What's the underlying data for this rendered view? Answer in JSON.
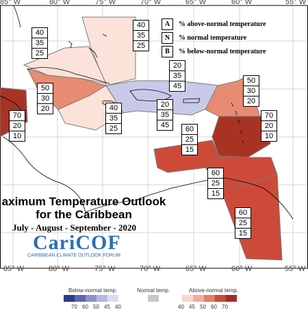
{
  "title_line1": "aximum Temperature Outlook",
  "title_line2": "for the Caribbean",
  "period": "July - August - September - 2020",
  "logo": {
    "name": "CariCOF",
    "subtitle": "CARIBBEAN CLIMATE OUTLOOK FORUM"
  },
  "legend": [
    {
      "key": "A",
      "text": "% above-normal temperature"
    },
    {
      "key": "N",
      "text": "% normal temperature"
    },
    {
      "key": "B",
      "text": "% below-normal temperature"
    }
  ],
  "longitudes": [
    "85° W",
    "80° W",
    "75° W",
    "70° W",
    "65° W",
    "60° W",
    "55° W"
  ],
  "regions": [
    {
      "name": "bahamas-east",
      "above": "40",
      "normal": "35",
      "below": "25",
      "color": "#fbe3da"
    },
    {
      "name": "bahamas-cuba-north",
      "above": "40",
      "normal": "35",
      "below": "25",
      "color": "#fbe3da"
    },
    {
      "name": "hispaniola-puerto-rico",
      "above": "20",
      "normal": "35",
      "below": "45",
      "color": "#c9c9ea"
    },
    {
      "name": "cuba-south",
      "above": "50",
      "normal": "30",
      "below": "20",
      "color": "#e88b73"
    },
    {
      "name": "jamaica-cayman",
      "above": "40",
      "normal": "35",
      "below": "25",
      "color": "#fbe3da"
    },
    {
      "name": "hispaniola-south",
      "above": "20",
      "normal": "35",
      "below": "45",
      "color": "#c9c9ea"
    },
    {
      "name": "leeward-islands-north",
      "above": "50",
      "normal": "30",
      "below": "20",
      "color": "#e88b73"
    },
    {
      "name": "lesser-antilles",
      "above": "70",
      "normal": "20",
      "below": "10",
      "color": "#a93323"
    },
    {
      "name": "belize-yucatan",
      "above": "70",
      "normal": "20",
      "below": "10",
      "color": "#a93323"
    },
    {
      "name": "abc-islands-venezuela",
      "above": "60",
      "normal": "25",
      "below": "15",
      "color": "#cd4a38"
    },
    {
      "name": "trinidad-venezuela",
      "above": "60",
      "normal": "25",
      "below": "15",
      "color": "#cd4a38"
    },
    {
      "name": "guianas",
      "above": "60",
      "normal": "25",
      "below": "15",
      "color": "#cd4a38"
    }
  ],
  "colorbar": {
    "below_label": "Below-normal temp.",
    "normal_label": "Normal temp.",
    "above_label": "Above-normal temp.",
    "below_ticks": [
      "70",
      "60",
      "50",
      "45",
      "40"
    ],
    "above_ticks": [
      "40",
      "45",
      "50",
      "60",
      "70"
    ],
    "below_colors": [
      "#2c3c8c",
      "#5e67b5",
      "#8c90cc",
      "#b6b8e0",
      "#dcdcf0"
    ],
    "normal_color": "#c8c8c8",
    "above_colors": [
      "#f7d6cc",
      "#f0ad9a",
      "#e47d66",
      "#c94a38",
      "#a32e21"
    ]
  }
}
